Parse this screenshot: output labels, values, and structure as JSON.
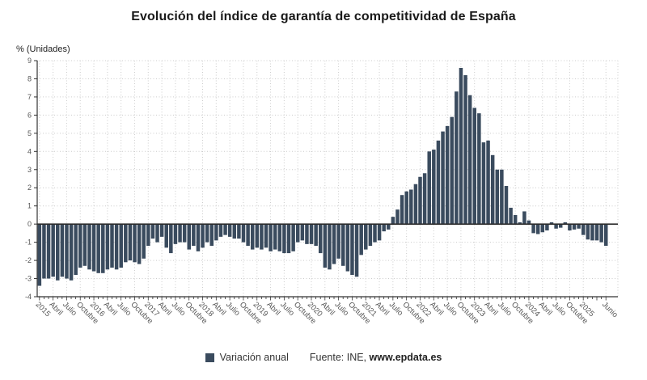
{
  "title": "Evolución del índice de garantía de competitividad de España",
  "y_axis_unit_label": "% (Unidades)",
  "legend": {
    "series_label": "Variación anual",
    "source_prefix": "Fuente: INE,",
    "source_link": "www.epdata.es"
  },
  "colors": {
    "bar": "#3a4b5e",
    "zero_line": "#2e2e2e",
    "axis": "#333333",
    "grid": "#cccccc",
    "tick_label": "#555555",
    "title": "#1a1a1a"
  },
  "chart_data": {
    "type": "bar",
    "title": "Evolución del índice de garantía de competitividad de España",
    "xlabel": "",
    "ylabel": "% (Unidades)",
    "ylim": [
      -4,
      9
    ],
    "y_tick_step": 1,
    "grid": true,
    "legend_position": "bottom",
    "x_unit": "monthly",
    "x_first_month": "Enero 2015",
    "x_last_month": "Junio 2025",
    "x_tick_labels": [
      "2015",
      "Abril",
      "Julio",
      "Octubre",
      "2016",
      "Abril",
      "Julio",
      "Octubre",
      "2017",
      "Abril",
      "Julio",
      "Octubre",
      "2018",
      "Abril",
      "Julio",
      "Octubre",
      "2019",
      "Abril",
      "Julio",
      "Octubre",
      "2020",
      "Abril",
      "Julio",
      "Octubre",
      "2021",
      "Abril",
      "Julio",
      "Octubre",
      "2022",
      "Abril",
      "Julio",
      "Octubre",
      "2023",
      "Abril",
      "Julio",
      "Octubre",
      "2024",
      "Abril",
      "Julio",
      "Octubre",
      "2025",
      "Junio"
    ],
    "x_tick_month_indices": [
      0,
      3,
      6,
      9,
      12,
      15,
      18,
      21,
      24,
      27,
      30,
      33,
      36,
      39,
      42,
      45,
      48,
      51,
      54,
      57,
      60,
      63,
      66,
      69,
      72,
      75,
      78,
      81,
      84,
      87,
      90,
      93,
      96,
      99,
      102,
      105,
      108,
      111,
      114,
      117,
      120,
      125
    ],
    "series": [
      {
        "name": "Variación anual",
        "values": [
          -3.4,
          -3.0,
          -3.0,
          -2.9,
          -3.1,
          -2.9,
          -3.0,
          -3.1,
          -2.8,
          -2.4,
          -2.3,
          -2.5,
          -2.6,
          -2.7,
          -2.7,
          -2.5,
          -2.4,
          -2.5,
          -2.4,
          -2.1,
          -2.0,
          -2.1,
          -2.2,
          -1.9,
          -1.2,
          -0.8,
          -1.0,
          -0.7,
          -1.3,
          -1.6,
          -1.1,
          -1.0,
          -1.0,
          -1.4,
          -1.2,
          -1.5,
          -1.3,
          -1.0,
          -1.2,
          -0.9,
          -0.7,
          -0.6,
          -0.7,
          -0.8,
          -0.8,
          -1.0,
          -1.2,
          -1.4,
          -1.3,
          -1.4,
          -1.3,
          -1.5,
          -1.4,
          -1.5,
          -1.6,
          -1.6,
          -1.5,
          -1.0,
          -0.9,
          -1.1,
          -1.1,
          -1.2,
          -1.6,
          -2.4,
          -2.5,
          -2.2,
          -1.9,
          -2.3,
          -2.6,
          -2.8,
          -2.9,
          -1.7,
          -1.4,
          -1.2,
          -1.0,
          -0.9,
          -0.4,
          -0.3,
          0.4,
          0.8,
          1.6,
          1.8,
          1.9,
          2.2,
          2.6,
          2.8,
          4.0,
          4.1,
          4.6,
          5.1,
          5.4,
          5.9,
          7.3,
          8.6,
          8.2,
          7.1,
          6.4,
          6.1,
          4.5,
          4.6,
          3.8,
          3.0,
          3.0,
          2.1,
          0.9,
          0.5,
          0.1,
          0.7,
          0.2,
          -0.5,
          -0.55,
          -0.45,
          -0.35,
          0.1,
          -0.25,
          -0.2,
          0.1,
          -0.35,
          -0.3,
          -0.25,
          -0.6,
          -0.85,
          -0.9,
          -0.9,
          -1.0,
          -1.2
        ]
      }
    ]
  }
}
